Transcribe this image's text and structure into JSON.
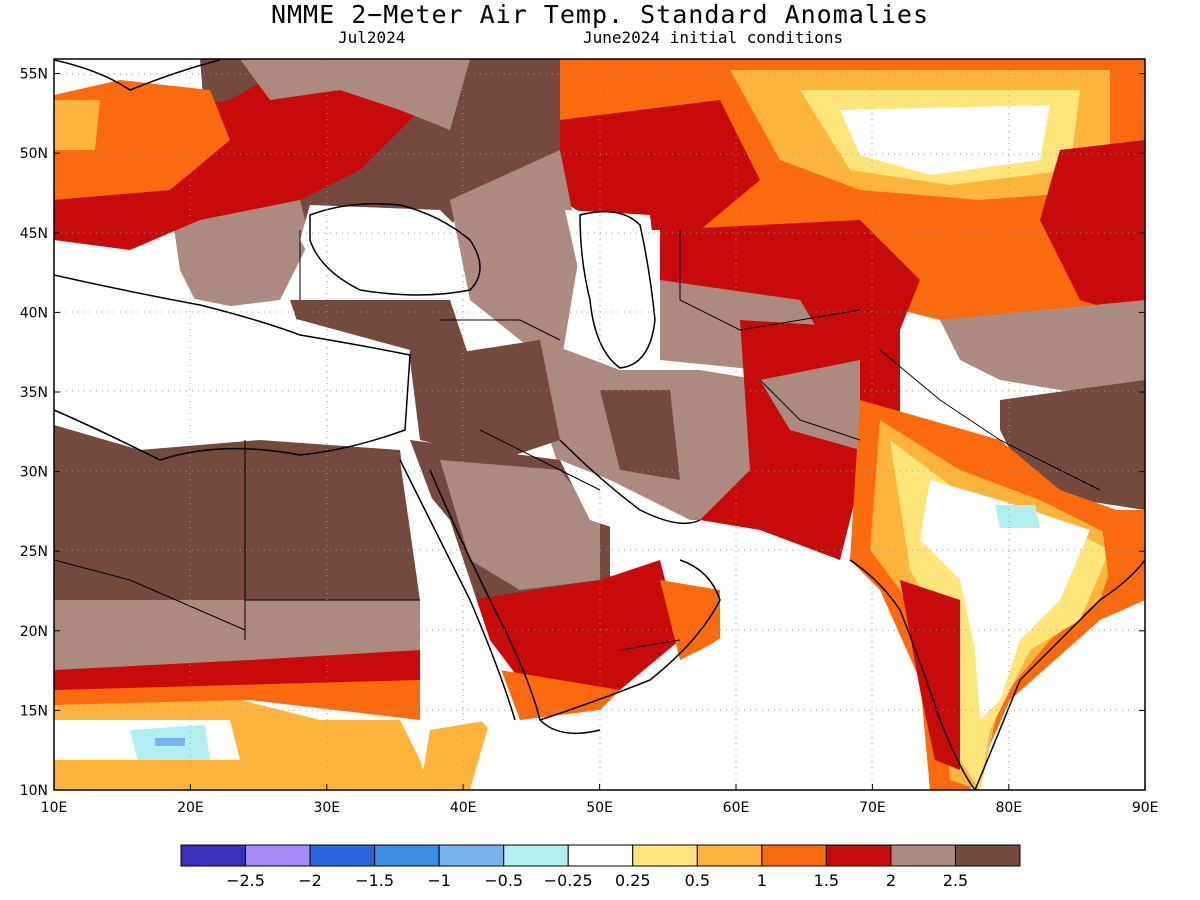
{
  "title": "NMME 2−Meter Air Temp. Standard Anomalies",
  "valid_month": "Jul2024",
  "initial_conditions": "June2024 initial conditions",
  "lat_labels": [
    "10N",
    "15N",
    "20N",
    "25N",
    "30N",
    "35N",
    "40N",
    "45N",
    "50N",
    "55N"
  ],
  "lon_labels": [
    "10E",
    "20E",
    "30E",
    "40E",
    "50E",
    "60E",
    "70E",
    "80E",
    "90E"
  ],
  "colorbar": {
    "colors": [
      "#3a2fb8",
      "#a38cf7",
      "#2a66e0",
      "#3d8de8",
      "#78b4ef",
      "#b1eef0",
      "#ffffff",
      "#fde57a",
      "#fdb43a",
      "#fb6a0c",
      "#c80a0a",
      "#ad8a80",
      "#74493e"
    ],
    "labels": [
      "−2.5",
      "−2",
      "−1.5",
      "−1",
      "−0.5",
      "−0.25",
      "0.25",
      "0.5",
      "1",
      "1.5",
      "2",
      "2.5"
    ]
  },
  "colors": {
    "land_neutral": "#ffffff",
    "light_brown": "#ad8a80",
    "dark_brown": "#74493e",
    "red": "#c80a0a",
    "orange": "#fb6a0c",
    "light_orange": "#fdb43a",
    "yellow": "#fde57a",
    "light_cyan": "#b1eef0",
    "light_blue": "#78b4ef"
  }
}
